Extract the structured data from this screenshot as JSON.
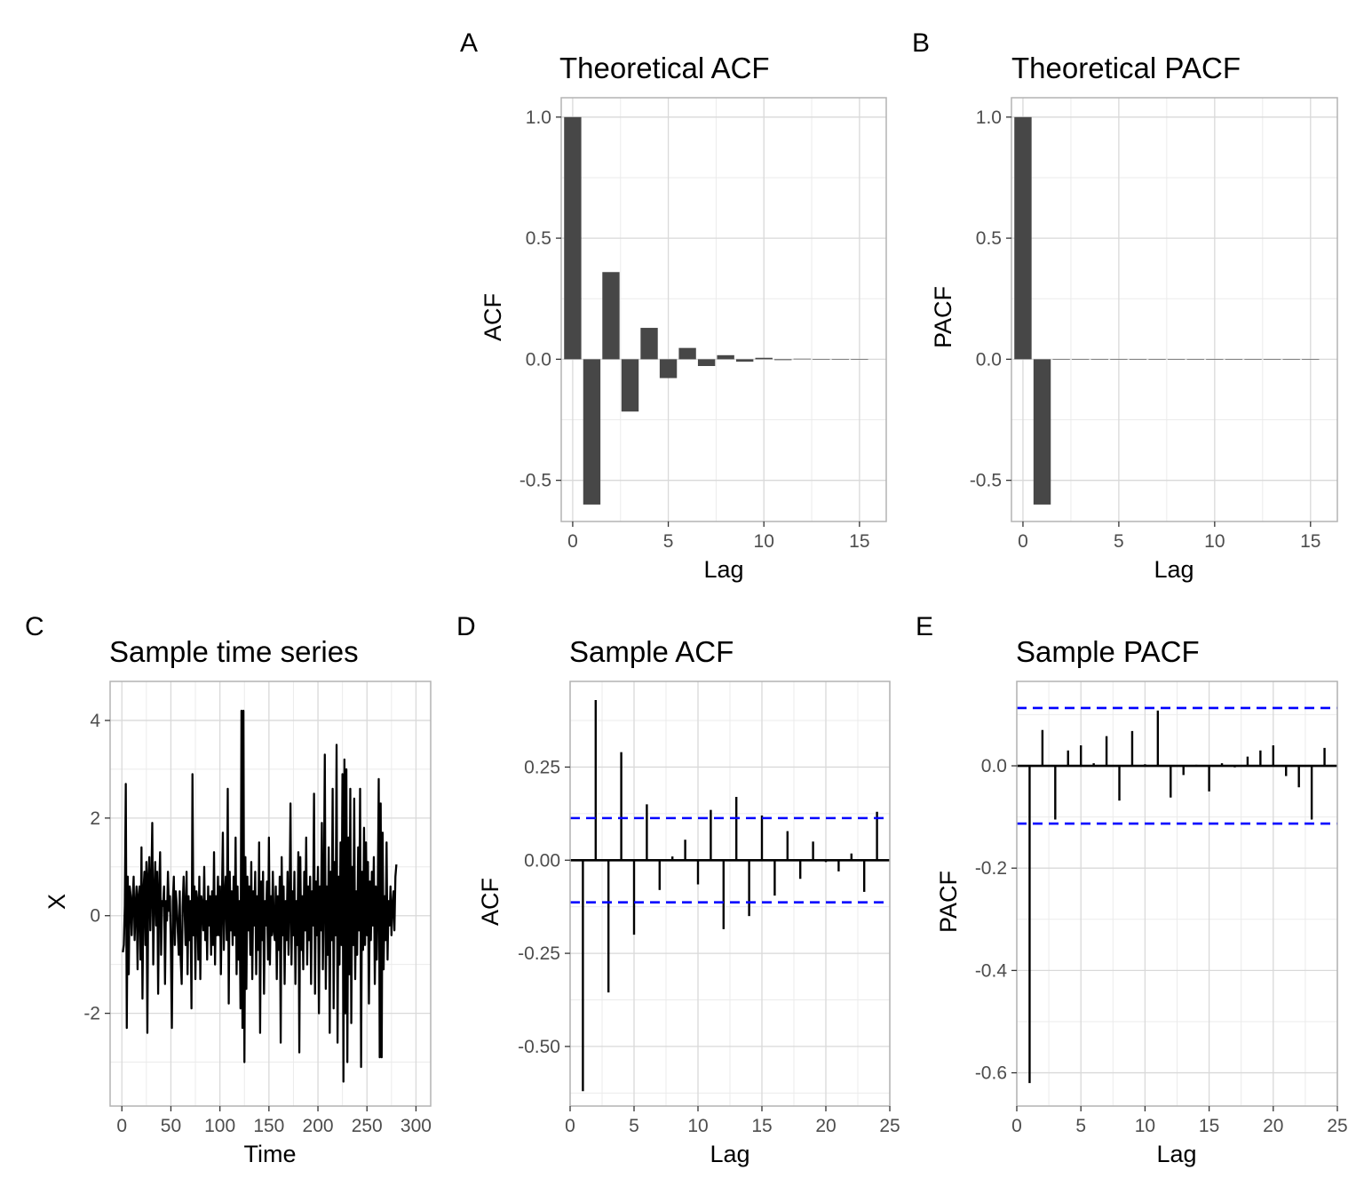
{
  "chart_data": [
    {
      "type": "bar",
      "panel_label": "A",
      "title": "Theoretical ACF",
      "xlabel": "Lag",
      "ylabel": "ACF",
      "xlim": [
        -0.6,
        16.4
      ],
      "ylim": [
        -0.67,
        1.08
      ],
      "xticks": [
        0,
        5,
        10,
        15
      ],
      "xtick_labels": [
        "0",
        "5",
        "10",
        "15"
      ],
      "yticks": [
        -0.5,
        0.0,
        0.5,
        1.0
      ],
      "ytick_labels": [
        "-0.5",
        "0.0",
        "0.5",
        "1.0"
      ],
      "grid": true,
      "bar_color": "#474747",
      "x": [
        0,
        1,
        2,
        3,
        4,
        5,
        6,
        7,
        8,
        9,
        10,
        11,
        12,
        13,
        14,
        15
      ],
      "values": [
        1.0,
        -0.6,
        0.36,
        -0.216,
        0.1296,
        -0.0778,
        0.0467,
        -0.028,
        0.0168,
        -0.0101,
        0.006,
        -0.0036,
        0.0022,
        -0.0013,
        0.0008,
        -0.0005
      ]
    },
    {
      "type": "bar",
      "panel_label": "B",
      "title": "Theoretical PACF",
      "xlabel": "Lag",
      "ylabel": "PACF",
      "xlim": [
        -0.6,
        16.4
      ],
      "ylim": [
        -0.67,
        1.08
      ],
      "xticks": [
        0,
        5,
        10,
        15
      ],
      "xtick_labels": [
        "0",
        "5",
        "10",
        "15"
      ],
      "yticks": [
        -0.5,
        0.0,
        0.5,
        1.0
      ],
      "ytick_labels": [
        "-0.5",
        "0.0",
        "0.5",
        "1.0"
      ],
      "grid": true,
      "bar_color": "#474747",
      "x": [
        0,
        1,
        2,
        3,
        4,
        5,
        6,
        7,
        8,
        9,
        10,
        11,
        12,
        13,
        14,
        15
      ],
      "values": [
        1.0,
        -0.6,
        0,
        0,
        0,
        0,
        0,
        0,
        0,
        0,
        0,
        0,
        0,
        0,
        0,
        0
      ]
    },
    {
      "type": "line",
      "panel_label": "C",
      "title": "Sample time series",
      "xlabel": "Time",
      "ylabel": "X",
      "xlim": [
        -12,
        315
      ],
      "ylim": [
        -3.9,
        4.8
      ],
      "xticks": [
        0,
        50,
        100,
        150,
        200,
        250,
        300
      ],
      "xtick_labels": [
        "0",
        "50",
        "100",
        "150",
        "200",
        "250",
        "300"
      ],
      "yticks": [
        -2,
        0,
        2,
        4
      ],
      "ytick_labels": [
        "-2",
        "0",
        "2",
        "4"
      ],
      "grid": true,
      "line_color": "#000000",
      "x_start": 1,
      "x_step": 1,
      "values": [
        -0.75,
        -0.6,
        0.2,
        2.7,
        -2.3,
        0.8,
        -1.2,
        0.6,
        0.4,
        -0.4,
        0.3,
        0.8,
        -0.5,
        0.2,
        0.6,
        -1.1,
        0.4,
        0.6,
        -0.9,
        1.4,
        -1.7,
        0.5,
        0.9,
        -0.6,
        1.1,
        -2.4,
        0.8,
        1.2,
        -0.3,
        0.6,
        1.9,
        -1.0,
        0.4,
        1.1,
        -0.2,
        0.9,
        -1.6,
        0.5,
        1.3,
        -0.8,
        0.3,
        0.2,
        0.6,
        -1.4,
        0.3,
        -0.1,
        0.9,
        0.1,
        0.4,
        -0.7,
        -2.3,
        0.3,
        0.8,
        -0.6,
        0.5,
        0.2,
        -0.3,
        -0.8,
        0.5,
        -0.9,
        -1.4,
        0.2,
        0.8,
        0.1,
        -0.6,
        0.9,
        -1.2,
        0.4,
        -0.5,
        0.3,
        -1.9,
        2.9,
        -0.4,
        0.6,
        -1.3,
        0.5,
        0.3,
        -0.9,
        0.8,
        -1.3,
        0.4,
        0.2,
        -0.3,
        1.0,
        -0.5,
        0.3,
        -0.9,
        0.6,
        -0.2,
        0.4,
        -0.8,
        0.5,
        -0.6,
        1.3,
        -1.0,
        0.4,
        -0.4,
        0.8,
        -0.4,
        0.6,
        -1.2,
        0.3,
        1.7,
        -0.7,
        0.4,
        0.8,
        -0.5,
        2.6,
        -1.8,
        0.9,
        -0.3,
        0.5,
        -0.6,
        0.8,
        -0.4,
        1.6,
        -1.2,
        0.6,
        -0.9,
        0.3,
        -1.9,
        4.2,
        -2.3,
        4.2,
        -3.0,
        1.2,
        -1.5,
        0.8,
        -0.3,
        0.6,
        -0.8,
        1.1,
        -1.3,
        0.5,
        -0.2,
        0.9,
        -1.2,
        0.4,
        -0.7,
        1.5,
        -2.4,
        0.7,
        -0.5,
        0.9,
        -1.6,
        0.3,
        -0.2,
        0.7,
        -0.9,
        1.6,
        -1.0,
        0.4,
        -0.4,
        0.9,
        -0.3,
        -0.5,
        0.6,
        -1.3,
        0.4,
        -0.7,
        0.8,
        -2.6,
        1.2,
        -0.4,
        0.6,
        -1.4,
        0.3,
        -0.5,
        0.9,
        -0.8,
        0.2,
        2.3,
        -1.0,
        0.5,
        -0.4,
        0.9,
        -1.4,
        0.3,
        -0.6,
        1.3,
        -2.8,
        1.2,
        -0.7,
        0.4,
        -1.1,
        0.9,
        -0.3,
        1.6,
        -1.0,
        0.6,
        -0.5,
        0.8,
        -1.4,
        0.5,
        -0.2,
        2.5,
        -1.6,
        0.7,
        -0.4,
        1.0,
        -2.0,
        0.6,
        -0.3,
        1.9,
        -1.1,
        0.4,
        3.3,
        -1.5,
        0.6,
        -0.8,
        1.4,
        -2.4,
        0.9,
        -0.5,
        2.6,
        -1.9,
        1.1,
        -0.4,
        3.5,
        -2.6,
        0.8,
        -1.0,
        1.5,
        -0.6,
        2.9,
        -3.4,
        3.2,
        -2.0,
        3.0,
        -3.0,
        1.6,
        -1.2,
        2.6,
        -2.2,
        1.0,
        -0.6,
        2.4,
        -1.3,
        0.5,
        -0.8,
        1.4,
        -0.3,
        2.6,
        -3.1,
        0.9,
        -0.7,
        1.8,
        -0.6,
        1.5,
        -0.4,
        1.1,
        -1.8,
        0.7,
        -0.5,
        0.9,
        -0.2,
        1.2,
        -1.4,
        0.6,
        -0.9,
        0.4,
        2.8,
        -2.9,
        2.3,
        -2.9,
        1.7,
        -1.1,
        0.4,
        -0.5,
        1.5,
        -0.9,
        0.3,
        -0.2,
        0.6,
        -0.4,
        0.2,
        0.5,
        -0.3,
        0.8,
        1.05
      ]
    },
    {
      "type": "bar",
      "panel_label": "D",
      "title": "Sample ACF",
      "xlabel": "Lag",
      "ylabel": "ACF",
      "xlim": [
        0,
        25
      ],
      "ylim": [
        -0.66,
        0.48
      ],
      "xticks": [
        0,
        5,
        10,
        15,
        20,
        25
      ],
      "xtick_labels": [
        "0",
        "5",
        "10",
        "15",
        "20",
        "25"
      ],
      "yticks": [
        -0.5,
        -0.25,
        0.0,
        0.25
      ],
      "ytick_labels": [
        "-0.50",
        "-0.25",
        "0.00",
        "0.25"
      ],
      "grid": true,
      "bar_style": "spike",
      "confidence_bounds": [
        0.113,
        -0.113
      ],
      "bound_color": "#0000ff",
      "x": [
        1,
        2,
        3,
        4,
        5,
        6,
        7,
        8,
        9,
        10,
        11,
        12,
        13,
        14,
        15,
        16,
        17,
        18,
        19,
        20,
        21,
        22,
        23,
        24
      ],
      "values": [
        -0.62,
        0.43,
        -0.355,
        0.29,
        -0.2,
        0.15,
        -0.08,
        0.01,
        0.055,
        -0.065,
        0.135,
        -0.185,
        0.17,
        -0.15,
        0.12,
        -0.095,
        0.078,
        -0.05,
        0.05,
        -0.005,
        -0.03,
        0.018,
        -0.085,
        0.13
      ]
    },
    {
      "type": "bar",
      "panel_label": "E",
      "title": "Sample PACF",
      "xlabel": "Lag",
      "ylabel": "PACF",
      "xlim": [
        0,
        25
      ],
      "ylim": [
        -0.665,
        0.165
      ],
      "xticks": [
        0,
        5,
        10,
        15,
        20,
        25
      ],
      "xtick_labels": [
        "0",
        "5",
        "10",
        "15",
        "20",
        "25"
      ],
      "yticks": [
        -0.6,
        -0.4,
        -0.2,
        0.0
      ],
      "ytick_labels": [
        "-0.6",
        "-0.4",
        "-0.2",
        "0.0"
      ],
      "grid": true,
      "bar_style": "spike",
      "confidence_bounds": [
        0.113,
        -0.113
      ],
      "bound_color": "#0000ff",
      "x": [
        1,
        2,
        3,
        4,
        5,
        6,
        7,
        8,
        9,
        10,
        11,
        12,
        13,
        14,
        15,
        16,
        17,
        18,
        19,
        20,
        21,
        22,
        23,
        24
      ],
      "values": [
        -0.62,
        0.07,
        -0.105,
        0.03,
        0.04,
        0.005,
        0.058,
        -0.068,
        0.068,
        0.003,
        0.108,
        -0.062,
        -0.018,
        0.002,
        -0.05,
        0.005,
        -0.003,
        0.018,
        0.03,
        0.04,
        -0.02,
        -0.042,
        -0.105,
        0.035
      ]
    }
  ]
}
